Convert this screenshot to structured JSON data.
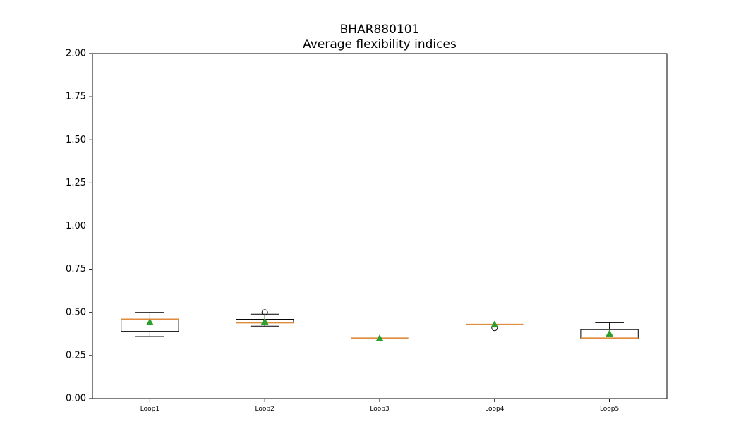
{
  "chart_data": {
    "type": "boxplot",
    "title": "BHAR880101",
    "subtitle": "Average flexibility indices",
    "xlabel": "",
    "ylabel": "",
    "ylim": [
      0,
      2
    ],
    "yticks": [
      "0.00",
      "0.25",
      "0.50",
      "0.75",
      "1.00",
      "1.25",
      "1.50",
      "1.75",
      "2.00"
    ],
    "grid": false,
    "categories": [
      "Loop1",
      "Loop2",
      "Loop3",
      "Loop4",
      "Loop5"
    ],
    "boxes": [
      {
        "label": "Loop1",
        "whisker_low": 0.36,
        "q1": 0.39,
        "median": 0.46,
        "q3": 0.46,
        "whisker_high": 0.5,
        "mean": 0.443,
        "outliers": []
      },
      {
        "label": "Loop2",
        "whisker_low": 0.42,
        "q1": 0.44,
        "median": 0.44,
        "q3": 0.46,
        "whisker_high": 0.49,
        "mean": 0.447,
        "outliers": [
          0.5
        ]
      },
      {
        "label": "Loop3",
        "whisker_low": 0.35,
        "q1": 0.35,
        "median": 0.35,
        "q3": 0.35,
        "whisker_high": 0.35,
        "mean": 0.35,
        "outliers": []
      },
      {
        "label": "Loop4",
        "whisker_low": 0.43,
        "q1": 0.43,
        "median": 0.43,
        "q3": 0.43,
        "whisker_high": 0.43,
        "mean": 0.43,
        "outliers": [
          0.41
        ]
      },
      {
        "label": "Loop5",
        "whisker_low": 0.35,
        "q1": 0.35,
        "median": 0.35,
        "q3": 0.4,
        "whisker_high": 0.44,
        "mean": 0.377,
        "outliers": []
      }
    ],
    "colors": {
      "box": "#000000",
      "median": "#e08a3c",
      "mean": "#2ca02c"
    }
  }
}
